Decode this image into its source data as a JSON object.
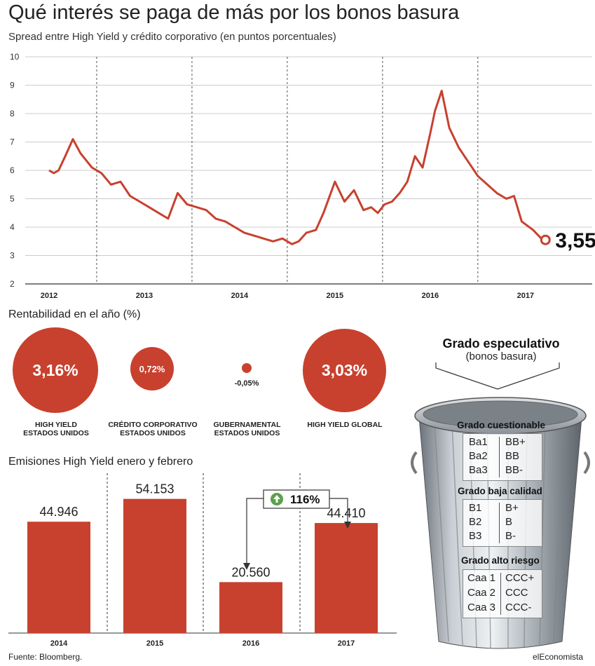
{
  "header": {
    "title": "Qué interés se paga de más por los bonos basura",
    "subtitle": "Spread entre High Yield y crédito corporativo (en puntos porcentuales)"
  },
  "chart_data": [
    {
      "type": "line",
      "title": "Qué interés se paga de más por los bonos basura",
      "subtitle": "Spread entre High Yield y crédito corporativo (en puntos porcentuales)",
      "x_ticks": [
        "2012",
        "2013",
        "2014",
        "2015",
        "2016",
        "2017"
      ],
      "ylim": [
        2,
        10
      ],
      "y_ticks": [
        2,
        3,
        4,
        5,
        6,
        7,
        8,
        9,
        10
      ],
      "grid": true,
      "series": [
        {
          "color": "#c8412e",
          "x": [
            2012.0,
            2012.05,
            2012.1,
            2012.17,
            2012.25,
            2012.33,
            2012.45,
            2012.55,
            2012.65,
            2012.75,
            2012.85,
            2012.95,
            2013.05,
            2013.15,
            2013.25,
            2013.35,
            2013.45,
            2013.55,
            2013.65,
            2013.75,
            2013.85,
            2013.95,
            2014.05,
            2014.15,
            2014.25,
            2014.35,
            2014.45,
            2014.55,
            2014.62,
            2014.7,
            2014.8,
            2014.88,
            2015.0,
            2015.1,
            2015.2,
            2015.3,
            2015.38,
            2015.45,
            2015.52,
            2015.6,
            2015.68,
            2015.76,
            2015.84,
            2015.92,
            2016.0,
            2016.05,
            2016.12,
            2016.2,
            2016.3,
            2016.4,
            2016.5,
            2016.6,
            2016.7,
            2016.8,
            2016.88,
            2016.96,
            2017.08,
            2017.18
          ],
          "y": [
            6.0,
            5.9,
            6.0,
            6.5,
            7.1,
            6.6,
            6.1,
            5.9,
            5.5,
            5.6,
            5.1,
            4.9,
            4.7,
            4.5,
            4.3,
            5.2,
            4.8,
            4.7,
            4.6,
            4.3,
            4.2,
            4.0,
            3.8,
            3.7,
            3.6,
            3.5,
            3.6,
            3.4,
            3.5,
            3.8,
            3.9,
            4.5,
            5.6,
            4.9,
            5.3,
            4.6,
            4.7,
            4.5,
            4.8,
            4.9,
            5.2,
            5.6,
            6.5,
            6.1,
            7.3,
            8.1,
            8.8,
            7.5,
            6.8,
            6.3,
            5.8,
            5.5,
            5.2,
            5.0,
            5.1,
            4.2,
            3.9,
            3.55
          ]
        }
      ],
      "annotations": [
        {
          "x": 2017.18,
          "y": 3.55,
          "text": "3,55"
        }
      ]
    },
    {
      "type": "bubble",
      "title": "Rentabilidad en el año (%)",
      "categories": [
        "HIGH YIELD ESTADOS UNIDOS",
        "CRÉDITO CORPORATIVO ESTADOS UNIDOS",
        "GUBERNAMENTAL ESTADOS UNIDOS",
        "HIGH YIELD GLOBAL"
      ],
      "values": [
        3.16,
        0.72,
        -0.05,
        3.03
      ],
      "value_labels": [
        "3,16%",
        "0,72%",
        "-0,05%",
        "3,03%"
      ]
    },
    {
      "type": "bar",
      "title": "Emisiones High Yield enero y febrero",
      "categories": [
        "2014",
        "2015",
        "2016",
        "2017"
      ],
      "values": [
        44946,
        54153,
        20560,
        44410
      ],
      "value_labels": [
        "44.946",
        "54.153",
        "20.560",
        "44.410"
      ],
      "annotations": [
        {
          "from": "2016",
          "to": "2017",
          "text": "116%"
        }
      ]
    }
  ],
  "line_chart": {
    "y_tick_labels": [
      "10",
      "9",
      "8",
      "7",
      "6",
      "5",
      "4",
      "3",
      "2"
    ],
    "x_tick_labels": [
      "2012",
      "2013",
      "2014",
      "2015",
      "2016",
      "2017"
    ],
    "end_label": "3,55"
  },
  "returns": {
    "title": "Rentabilidad en el año (%)",
    "items": [
      {
        "value": "3,16%",
        "label_line1": "HIGH YIELD",
        "label_line2": "ESTADOS UNIDOS"
      },
      {
        "value": "0,72%",
        "label_line1": "CRÉDITO CORPORATIVO",
        "label_line2": "ESTADOS UNIDOS"
      },
      {
        "value": "-0,05%",
        "label_line1": "GUBERNAMENTAL",
        "label_line2": "ESTADOS UNIDOS"
      },
      {
        "value": "3,03%",
        "label_line1": "HIGH YIELD GLOBAL",
        "label_line2": ""
      }
    ]
  },
  "issuance": {
    "title": "Emisiones High Yield enero y febrero",
    "bars": [
      {
        "year": "2014",
        "value": "44.946"
      },
      {
        "year": "2015",
        "value": "54.153"
      },
      {
        "year": "2016",
        "value": "20.560"
      },
      {
        "year": "2017",
        "value": "44.410"
      }
    ],
    "change_label": "116%",
    "change_icon": "up-arrow-icon"
  },
  "junk": {
    "title": "Grado especulativo",
    "subtitle": "(bonos basura)",
    "grades": [
      {
        "title": "Grado cuestionable",
        "rows": [
          [
            "Ba1",
            "BB+"
          ],
          [
            "Ba2",
            "BB"
          ],
          [
            "Ba3",
            "BB-"
          ]
        ]
      },
      {
        "title": "Grado baja calidad",
        "rows": [
          [
            "B1",
            "B+"
          ],
          [
            "B2",
            "B"
          ],
          [
            "B3",
            "B-"
          ]
        ]
      },
      {
        "title": "Grado alto riesgo",
        "rows": [
          [
            "Caa 1",
            "CCC+"
          ],
          [
            "Caa 2",
            "CCC"
          ],
          [
            "Caa 3",
            "CCC-"
          ]
        ]
      }
    ],
    "image": "trash-can-icon"
  },
  "footer": {
    "source": "Fuente: Bloomberg.",
    "brand": "elEconomista"
  },
  "colors": {
    "accent": "#c8412e",
    "green": "#5aa24a"
  }
}
